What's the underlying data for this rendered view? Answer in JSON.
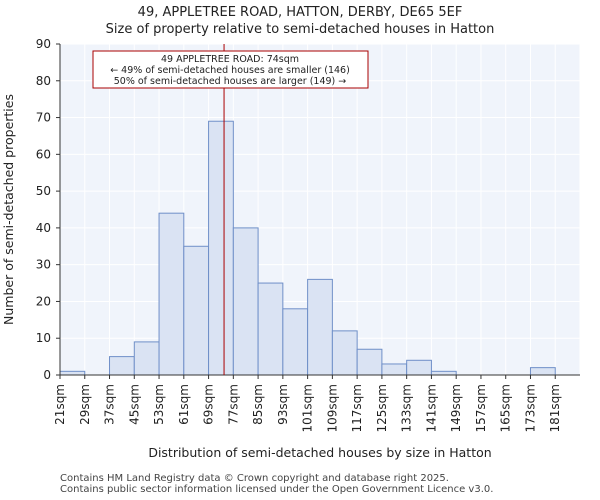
{
  "chart_data": {
    "type": "bar",
    "title": "49, APPLETREE ROAD, HATTON, DERBY, DE65 5EF",
    "subtitle": "Size of property relative to semi-detached houses in Hatton",
    "xlabel": "Distribution of semi-detached houses by size in Hatton",
    "ylabel": "Number of semi-detached properties",
    "categories": [
      "21sqm",
      "29sqm",
      "37sqm",
      "45sqm",
      "53sqm",
      "61sqm",
      "69sqm",
      "77sqm",
      "85sqm",
      "93sqm",
      "101sqm",
      "109sqm",
      "117sqm",
      "125sqm",
      "133sqm",
      "141sqm",
      "149sqm",
      "157sqm",
      "165sqm",
      "173sqm",
      "181sqm"
    ],
    "bin_edges": [
      21,
      29,
      37,
      45,
      53,
      61,
      69,
      77,
      85,
      93,
      101,
      109,
      117,
      125,
      133,
      141,
      149,
      157,
      165,
      173,
      181,
      189
    ],
    "values": [
      1,
      0,
      5,
      9,
      44,
      35,
      69,
      40,
      25,
      18,
      26,
      12,
      7,
      3,
      4,
      1,
      0,
      0,
      0,
      2,
      0
    ],
    "ylim": [
      0,
      90
    ],
    "yticks": [
      0,
      10,
      20,
      30,
      40,
      50,
      60,
      70,
      80,
      90
    ],
    "grid": true,
    "marker": {
      "x": 74,
      "color": "#aa0000"
    },
    "annotation": {
      "lines": [
        "49 APPLETREE ROAD: 74sqm",
        "← 49% of semi-detached houses are smaller (146)",
        "50% of semi-detached houses are larger (149) →"
      ]
    },
    "colors": {
      "bar_fill": "#dae3f3",
      "bar_stroke": "#6f8fc8",
      "plot_bg": "#f0f4fb",
      "grid": "#ffffff"
    }
  },
  "footer": {
    "line1": "Contains HM Land Registry data © Crown copyright and database right 2025.",
    "line2": "Contains public sector information licensed under the Open Government Licence v3.0."
  }
}
